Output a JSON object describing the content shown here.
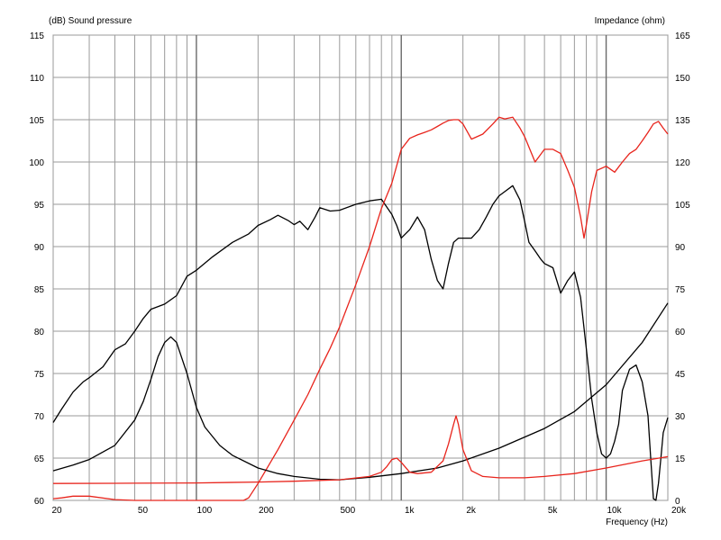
{
  "chart_data": {
    "type": "line",
    "title": "",
    "left_axis_label": "(dB)  Sound pressure",
    "right_axis_label": "Impedance  (ohm)",
    "xlabel": "Frequency  (Hz)",
    "x_scale": "log",
    "xlim": [
      20,
      20000
    ],
    "ylim_left": [
      60,
      115
    ],
    "ylim_right": [
      0,
      165
    ],
    "grid": true,
    "x_ticks": [
      {
        "value": 20,
        "label": "20"
      },
      {
        "value": 50,
        "label": "50"
      },
      {
        "value": 100,
        "label": "100"
      },
      {
        "value": 200,
        "label": "200"
      },
      {
        "value": 500,
        "label": "500"
      },
      {
        "value": 1000,
        "label": "1k"
      },
      {
        "value": 2000,
        "label": "2k"
      },
      {
        "value": 5000,
        "label": "5k"
      },
      {
        "value": 10000,
        "label": "10k"
      },
      {
        "value": 20000,
        "label": "20k"
      }
    ],
    "y_ticks_left": [
      {
        "value": 115,
        "label": "115"
      },
      {
        "value": 110,
        "label": "110"
      },
      {
        "value": 105,
        "label": "105"
      },
      {
        "value": 100,
        "label": "100"
      },
      {
        "value": 95,
        "label": "95"
      },
      {
        "value": 90,
        "label": "90"
      },
      {
        "value": 85,
        "label": "85"
      },
      {
        "value": 80,
        "label": "80"
      },
      {
        "value": 75,
        "label": "75"
      },
      {
        "value": 70,
        "label": "70"
      },
      {
        "value": 65,
        "label": "65"
      },
      {
        "value": 60,
        "label": "60"
      }
    ],
    "y_ticks_right": [
      {
        "value": 165,
        "label": "165"
      },
      {
        "value": 150,
        "label": "150"
      },
      {
        "value": 135,
        "label": "135"
      },
      {
        "value": 120,
        "label": "120"
      },
      {
        "value": 105,
        "label": "105"
      },
      {
        "value": 90,
        "label": "90"
      },
      {
        "value": 75,
        "label": "75"
      },
      {
        "value": 60,
        "label": "60"
      },
      {
        "value": 45,
        "label": "45"
      },
      {
        "value": 30,
        "label": "30"
      },
      {
        "value": 15,
        "label": "15"
      },
      {
        "value": 0,
        "label": "0"
      }
    ],
    "series": [
      {
        "axis": "left",
        "color": "#000000",
        "x": [
          20,
          22,
          25,
          28,
          30,
          35,
          40,
          45,
          50,
          55,
          60,
          70,
          80,
          90,
          100,
          120,
          150,
          180,
          200,
          230,
          250,
          280,
          300,
          320,
          350,
          380,
          400,
          450,
          500,
          600,
          700,
          800,
          900,
          950,
          1000,
          1100,
          1200,
          1300,
          1400,
          1500,
          1600,
          1700,
          1800,
          1900,
          2000,
          2200,
          2400,
          2600,
          2800,
          3000,
          3200,
          3500,
          3800,
          4000,
          4200,
          4500,
          4800,
          5000,
          5500,
          6000,
          6500,
          7000,
          7500,
          8000,
          8500,
          9000,
          9500,
          10000,
          10500,
          11000,
          11500,
          12000,
          13000,
          14000,
          15000,
          16000,
          16500,
          17000,
          17500,
          18000,
          18500,
          19000,
          20000
        ],
        "y": [
          69.2,
          70.8,
          72.8,
          74.0,
          74.5,
          75.8,
          77.8,
          78.5,
          80.0,
          81.5,
          82.6,
          83.2,
          84.2,
          86.5,
          87.2,
          88.8,
          90.5,
          91.5,
          92.5,
          93.2,
          93.7,
          93.1,
          92.6,
          93.0,
          92.0,
          93.5,
          94.6,
          94.2,
          94.3,
          95.0,
          95.4,
          95.6,
          93.8,
          92.5,
          91.0,
          92.0,
          93.5,
          92.0,
          88.5,
          86.0,
          85.0,
          88.0,
          90.5,
          91.0,
          91.0,
          91.0,
          92.0,
          93.5,
          95.0,
          96.0,
          96.5,
          97.2,
          95.5,
          93.0,
          90.5,
          89.5,
          88.5,
          88.0,
          87.5,
          84.5,
          86.0,
          87.0,
          84.0,
          78.0,
          72.0,
          68.0,
          65.5,
          65.0,
          65.5,
          67.0,
          69.0,
          73.0,
          75.5,
          76.0,
          74.0,
          70.0,
          65.0,
          60.2,
          60.0,
          62.0,
          65.0,
          68.0,
          69.8
        ]
      },
      {
        "axis": "left",
        "color": "#e8241c",
        "x": [
          20,
          22,
          25,
          30,
          40,
          50,
          100,
          150,
          160,
          170,
          180,
          200,
          250,
          300,
          350,
          400,
          450,
          500,
          600,
          700,
          800,
          900,
          1000,
          1100,
          1200,
          1300,
          1400,
          1500,
          1600,
          1700,
          1800,
          1900,
          2000,
          2200,
          2500,
          2800,
          3000,
          3200,
          3500,
          3800,
          4000,
          4500,
          5000,
          5500,
          6000,
          6500,
          7000,
          7500,
          7800,
          8000,
          8500,
          9000,
          10000,
          11000,
          12000,
          13000,
          14000,
          15000,
          16000,
          17000,
          18000,
          19000,
          20000
        ],
        "y": [
          60.2,
          60.3,
          60.5,
          60.5,
          60.1,
          60.0,
          60.0,
          60.0,
          60.0,
          60.0,
          60.3,
          62.0,
          66.0,
          69.5,
          72.5,
          75.5,
          78.0,
          80.5,
          85.5,
          90.0,
          94.5,
          97.5,
          101.5,
          102.8,
          103.2,
          103.5,
          103.8,
          104.2,
          104.6,
          104.9,
          105.0,
          105.0,
          104.5,
          102.7,
          103.3,
          104.5,
          105.3,
          105.1,
          105.3,
          104.0,
          103.0,
          100.0,
          101.5,
          101.5,
          101.0,
          99.0,
          97.0,
          93.5,
          91.0,
          92.5,
          96.5,
          99.0,
          99.5,
          98.8,
          100.0,
          101.0,
          101.5,
          102.5,
          103.5,
          104.5,
          104.8,
          104.0,
          103.3
        ]
      },
      {
        "axis": "right",
        "color": "#000000",
        "x": [
          20,
          25,
          30,
          40,
          50,
          55,
          60,
          65,
          70,
          75,
          80,
          90,
          100,
          110,
          130,
          150,
          200,
          250,
          300,
          400,
          500,
          700,
          1000,
          1500,
          2000,
          3000,
          5000,
          7000,
          10000,
          15000,
          20000
        ],
        "y": [
          10.5,
          12.5,
          14.5,
          19.5,
          28.5,
          35,
          43,
          51,
          56,
          58,
          56,
          45,
          33,
          26,
          19.5,
          16,
          11.5,
          9.5,
          8.5,
          7.5,
          7.3,
          8.2,
          9.5,
          11.5,
          14.0,
          18.5,
          25.5,
          31.5,
          41.0,
          56.0,
          70.0
        ]
      },
      {
        "axis": "right",
        "color": "#e8241c",
        "x": [
          20,
          50,
          100,
          200,
          300,
          500,
          700,
          800,
          850,
          900,
          950,
          1000,
          1100,
          1200,
          1400,
          1600,
          1700,
          1800,
          1850,
          1900,
          2000,
          2200,
          2500,
          3000,
          4000,
          5000,
          7000,
          10000,
          15000,
          20000
        ],
        "y": [
          6.0,
          6.1,
          6.2,
          6.5,
          6.8,
          7.3,
          8.5,
          10.0,
          12.0,
          14.5,
          15.0,
          13.5,
          10.0,
          9.5,
          10.0,
          14.0,
          20.0,
          27.0,
          30.0,
          27.0,
          18.0,
          10.5,
          8.5,
          8.0,
          8.0,
          8.5,
          9.5,
          11.5,
          14.0,
          15.5
        ]
      }
    ]
  }
}
